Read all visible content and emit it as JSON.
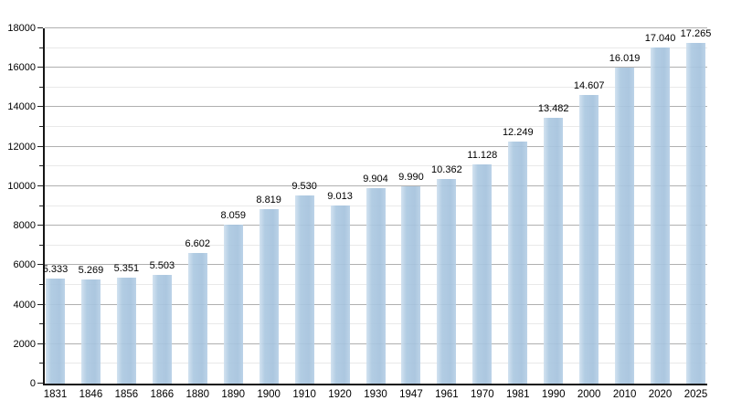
{
  "chart_data": {
    "type": "bar",
    "title": "",
    "xlabel": "",
    "ylabel": "",
    "categories": [
      "1831",
      "1846",
      "1856",
      "1866",
      "1880",
      "1890",
      "1900",
      "1910",
      "1920",
      "1930",
      "1947",
      "1961",
      "1970",
      "1981",
      "1990",
      "2000",
      "2010",
      "2020",
      "2025"
    ],
    "values": [
      5333,
      5269,
      5351,
      5503,
      6602,
      8059,
      8819,
      9530,
      9013,
      9904,
      9990,
      10362,
      11128,
      12249,
      13482,
      14607,
      16019,
      17040,
      17265
    ],
    "value_labels": [
      "5.333",
      "5.269",
      "5.351",
      "5.503",
      "6.602",
      "8.059",
      "8.819",
      "9.530",
      "9.013",
      "9.904",
      "9.990",
      "10.362",
      "11.128",
      "12.249",
      "13.482",
      "14.607",
      "16.019",
      "17.040",
      "17.265"
    ],
    "ylim": [
      0,
      18000
    ],
    "ytick_major_step": 2000,
    "ytick_minor_step": 1000,
    "ytick_labels": [
      "0",
      "2000",
      "4000",
      "6000",
      "8000",
      "10000",
      "12000",
      "14000",
      "16000",
      "18000"
    ],
    "grid": true,
    "legend": false
  },
  "style": {
    "bar_color": "#a8c5df",
    "bar_highlight_color": "#cfe0ef",
    "major_grid_color": "#b0b0b0",
    "minor_grid_color": "#e9e9e9",
    "axis_color": "#151515",
    "text_color": "#000000",
    "background": "#ffffff"
  }
}
